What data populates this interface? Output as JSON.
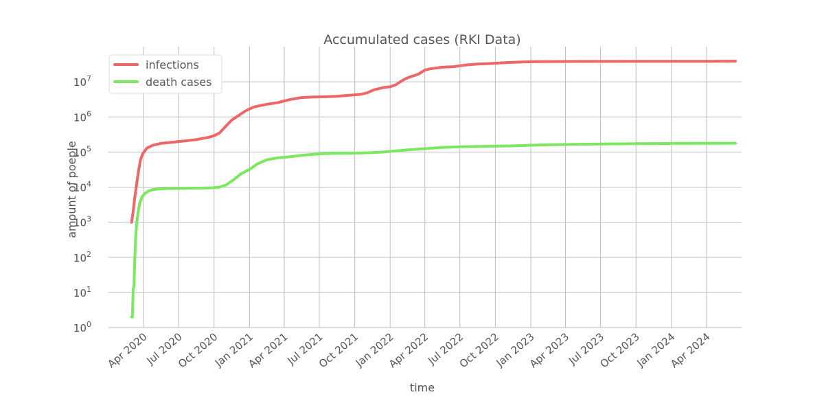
{
  "chart_data": {
    "type": "line",
    "title": "Accumulated cases (RKI Data)",
    "xlabel": "time",
    "ylabel": "amount of poeple",
    "y_scale": "log",
    "ylim": [
      1,
      100000000
    ],
    "xlim": [
      "2020-01-01",
      "2024-07-01"
    ],
    "grid": true,
    "legend_position": "upper-left",
    "x_tick_labels": [
      "Apr 2020",
      "Jul 2020",
      "Oct 2020",
      "Jan 2021",
      "Apr 2021",
      "Jul 2021",
      "Oct 2021",
      "Jan 2022",
      "Apr 2022",
      "Jul 2022",
      "Oct 2022",
      "Jan 2023",
      "Apr 2023",
      "Jul 2023",
      "Oct 2023",
      "Jan 2024",
      "Apr 2024"
    ],
    "x_ticks": [
      "2020-04-01",
      "2020-07-01",
      "2020-10-01",
      "2021-01-01",
      "2021-04-01",
      "2021-07-01",
      "2021-10-01",
      "2022-01-01",
      "2022-04-01",
      "2022-07-01",
      "2022-10-01",
      "2023-01-01",
      "2023-04-01",
      "2023-07-01",
      "2023-10-01",
      "2024-01-01",
      "2024-04-01"
    ],
    "y_ticks": [
      {
        "base": "10",
        "exp": "0",
        "value": 1
      },
      {
        "base": "10",
        "exp": "1",
        "value": 10
      },
      {
        "base": "10",
        "exp": "2",
        "value": 100
      },
      {
        "base": "10",
        "exp": "3",
        "value": 1000
      },
      {
        "base": "10",
        "exp": "4",
        "value": 10000
      },
      {
        "base": "10",
        "exp": "5",
        "value": 100000
      },
      {
        "base": "10",
        "exp": "6",
        "value": 1000000
      },
      {
        "base": "10",
        "exp": "7",
        "value": 10000000
      }
    ],
    "series": [
      {
        "name": "infections",
        "color": "#ee6666",
        "x": [
          "2020-03-01",
          "2020-03-05",
          "2020-03-09",
          "2020-03-13",
          "2020-03-18",
          "2020-03-24",
          "2020-03-30",
          "2020-04-10",
          "2020-04-25",
          "2020-05-15",
          "2020-06-15",
          "2020-07-15",
          "2020-08-15",
          "2020-09-15",
          "2020-10-01",
          "2020-10-15",
          "2020-11-01",
          "2020-11-15",
          "2020-12-01",
          "2020-12-20",
          "2021-01-01",
          "2021-01-15",
          "2021-02-15",
          "2021-03-15",
          "2021-04-15",
          "2021-05-15",
          "2021-06-15",
          "2021-07-15",
          "2021-08-15",
          "2021-09-15",
          "2021-10-15",
          "2021-11-01",
          "2021-11-20",
          "2021-12-15",
          "2022-01-01",
          "2022-01-15",
          "2022-02-01",
          "2022-02-15",
          "2022-03-15",
          "2022-04-01",
          "2022-04-15",
          "2022-05-15",
          "2022-06-15",
          "2022-07-15",
          "2022-08-15",
          "2022-09-15",
          "2022-10-15",
          "2022-11-15",
          "2022-12-15",
          "2023-01-15",
          "2023-04-15",
          "2023-07-15",
          "2023-10-15",
          "2024-01-15",
          "2024-04-15",
          "2024-06-15"
        ],
        "values": [
          1000,
          2000,
          5000,
          10000,
          25000,
          60000,
          90000,
          130000,
          155000,
          175000,
          190000,
          205000,
          225000,
          260000,
          290000,
          350000,
          550000,
          800000,
          1050000,
          1450000,
          1700000,
          1950000,
          2300000,
          2550000,
          3100000,
          3550000,
          3700000,
          3750000,
          3850000,
          4100000,
          4400000,
          4800000,
          5900000,
          6900000,
          7200000,
          8200000,
          10800000,
          13000000,
          16500000,
          21500000,
          23500000,
          26000000,
          27000000,
          30000000,
          32000000,
          33000000,
          34500000,
          36000000,
          37000000,
          37500000,
          38000000,
          38200000,
          38300000,
          38400000,
          38500000,
          38600000
        ]
      },
      {
        "name": "death cases",
        "color": "#7be85f",
        "x": [
          "2020-03-01",
          "2020-03-03",
          "2020-03-05",
          "2020-03-07",
          "2020-03-09",
          "2020-03-11",
          "2020-03-14",
          "2020-03-18",
          "2020-03-22",
          "2020-03-28",
          "2020-04-05",
          "2020-04-15",
          "2020-04-25",
          "2020-05-10",
          "2020-06-01",
          "2020-07-01",
          "2020-08-01",
          "2020-09-01",
          "2020-10-01",
          "2020-10-15",
          "2020-11-01",
          "2020-11-20",
          "2020-12-10",
          "2021-01-01",
          "2021-01-20",
          "2021-02-15",
          "2021-03-15",
          "2021-04-15",
          "2021-05-15",
          "2021-06-15",
          "2021-07-15",
          "2021-08-15",
          "2021-09-15",
          "2021-10-15",
          "2021-11-15",
          "2021-12-15",
          "2022-01-15",
          "2022-02-15",
          "2022-03-15",
          "2022-04-15",
          "2022-05-15",
          "2022-06-15",
          "2022-07-15",
          "2022-09-15",
          "2022-11-15",
          "2023-01-15",
          "2023-04-15",
          "2023-07-15",
          "2023-10-15",
          "2024-01-15",
          "2024-04-15",
          "2024-06-15"
        ],
        "values": [
          2,
          2,
          12,
          15,
          80,
          300,
          900,
          2000,
          3500,
          5300,
          6700,
          7800,
          8500,
          8900,
          9100,
          9200,
          9300,
          9400,
          9600,
          10000,
          11500,
          16000,
          24000,
          32000,
          45000,
          60000,
          68000,
          73000,
          80000,
          86000,
          90000,
          91500,
          92000,
          93500,
          96000,
          100000,
          108000,
          115000,
          120000,
          128000,
          135000,
          139000,
          142000,
          146000,
          150000,
          158000,
          165000,
          170000,
          173000,
          175000,
          177000,
          178000
        ]
      }
    ]
  }
}
